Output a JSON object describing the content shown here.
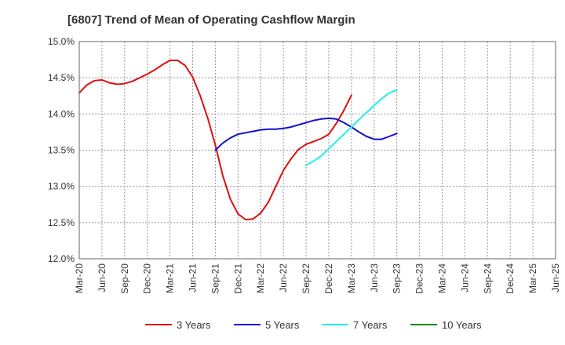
{
  "chart_data": {
    "type": "line",
    "title": "[6807]  Trend of Mean of Operating Cashflow Margin",
    "xlabel": "",
    "ylabel": "",
    "ylim": [
      12.0,
      15.0
    ],
    "y_ticks": [
      "12.0%",
      "12.5%",
      "13.0%",
      "13.5%",
      "14.0%",
      "14.5%",
      "15.0%"
    ],
    "y_tick_values": [
      12.0,
      12.5,
      13.0,
      13.5,
      14.0,
      14.5,
      15.0
    ],
    "x_ticks": [
      "Mar-20",
      "Jun-20",
      "Sep-20",
      "Dec-20",
      "Mar-21",
      "Jun-21",
      "Sep-21",
      "Dec-21",
      "Mar-22",
      "Jun-22",
      "Sep-22",
      "Dec-22",
      "Mar-23",
      "Jun-23",
      "Sep-23",
      "Dec-23",
      "Mar-24",
      "Jun-24",
      "Sep-24",
      "Dec-24",
      "Mar-25",
      "Jun-25"
    ],
    "grid": true,
    "legend_position": "bottom",
    "series": [
      {
        "name": "3 Years",
        "color": "#dd1111",
        "start_index": 0,
        "values": [
          14.29,
          14.4,
          14.46,
          14.47,
          14.43,
          14.41,
          14.42,
          14.45,
          14.5,
          14.55,
          14.61,
          14.68,
          14.74,
          14.74,
          14.67,
          14.51,
          14.25,
          13.94,
          13.57,
          13.14,
          12.82,
          12.62,
          12.54,
          12.55,
          12.63,
          12.78,
          13.0,
          13.22,
          13.38,
          13.51,
          13.58,
          13.62,
          13.66,
          13.72,
          13.87,
          14.05,
          14.26
        ]
      },
      {
        "name": "5 Years",
        "color": "#1111cc",
        "start_index": 18,
        "values": [
          13.5,
          13.6,
          13.67,
          13.72,
          13.74,
          13.76,
          13.78,
          13.79,
          13.79,
          13.8,
          13.82,
          13.85,
          13.88,
          13.91,
          13.93,
          13.94,
          13.93,
          13.88,
          13.82,
          13.75,
          13.69,
          13.65,
          13.65,
          13.69,
          13.73
        ]
      },
      {
        "name": "7 Years",
        "color": "#22eeee",
        "start_index": 30,
        "values": [
          13.29,
          13.35,
          13.42,
          13.52,
          13.62,
          13.72,
          13.82,
          13.92,
          14.02,
          14.12,
          14.21,
          14.29,
          14.33
        ]
      },
      {
        "name": "10 Years",
        "color": "#118811",
        "start_index": 0,
        "values": []
      }
    ]
  }
}
